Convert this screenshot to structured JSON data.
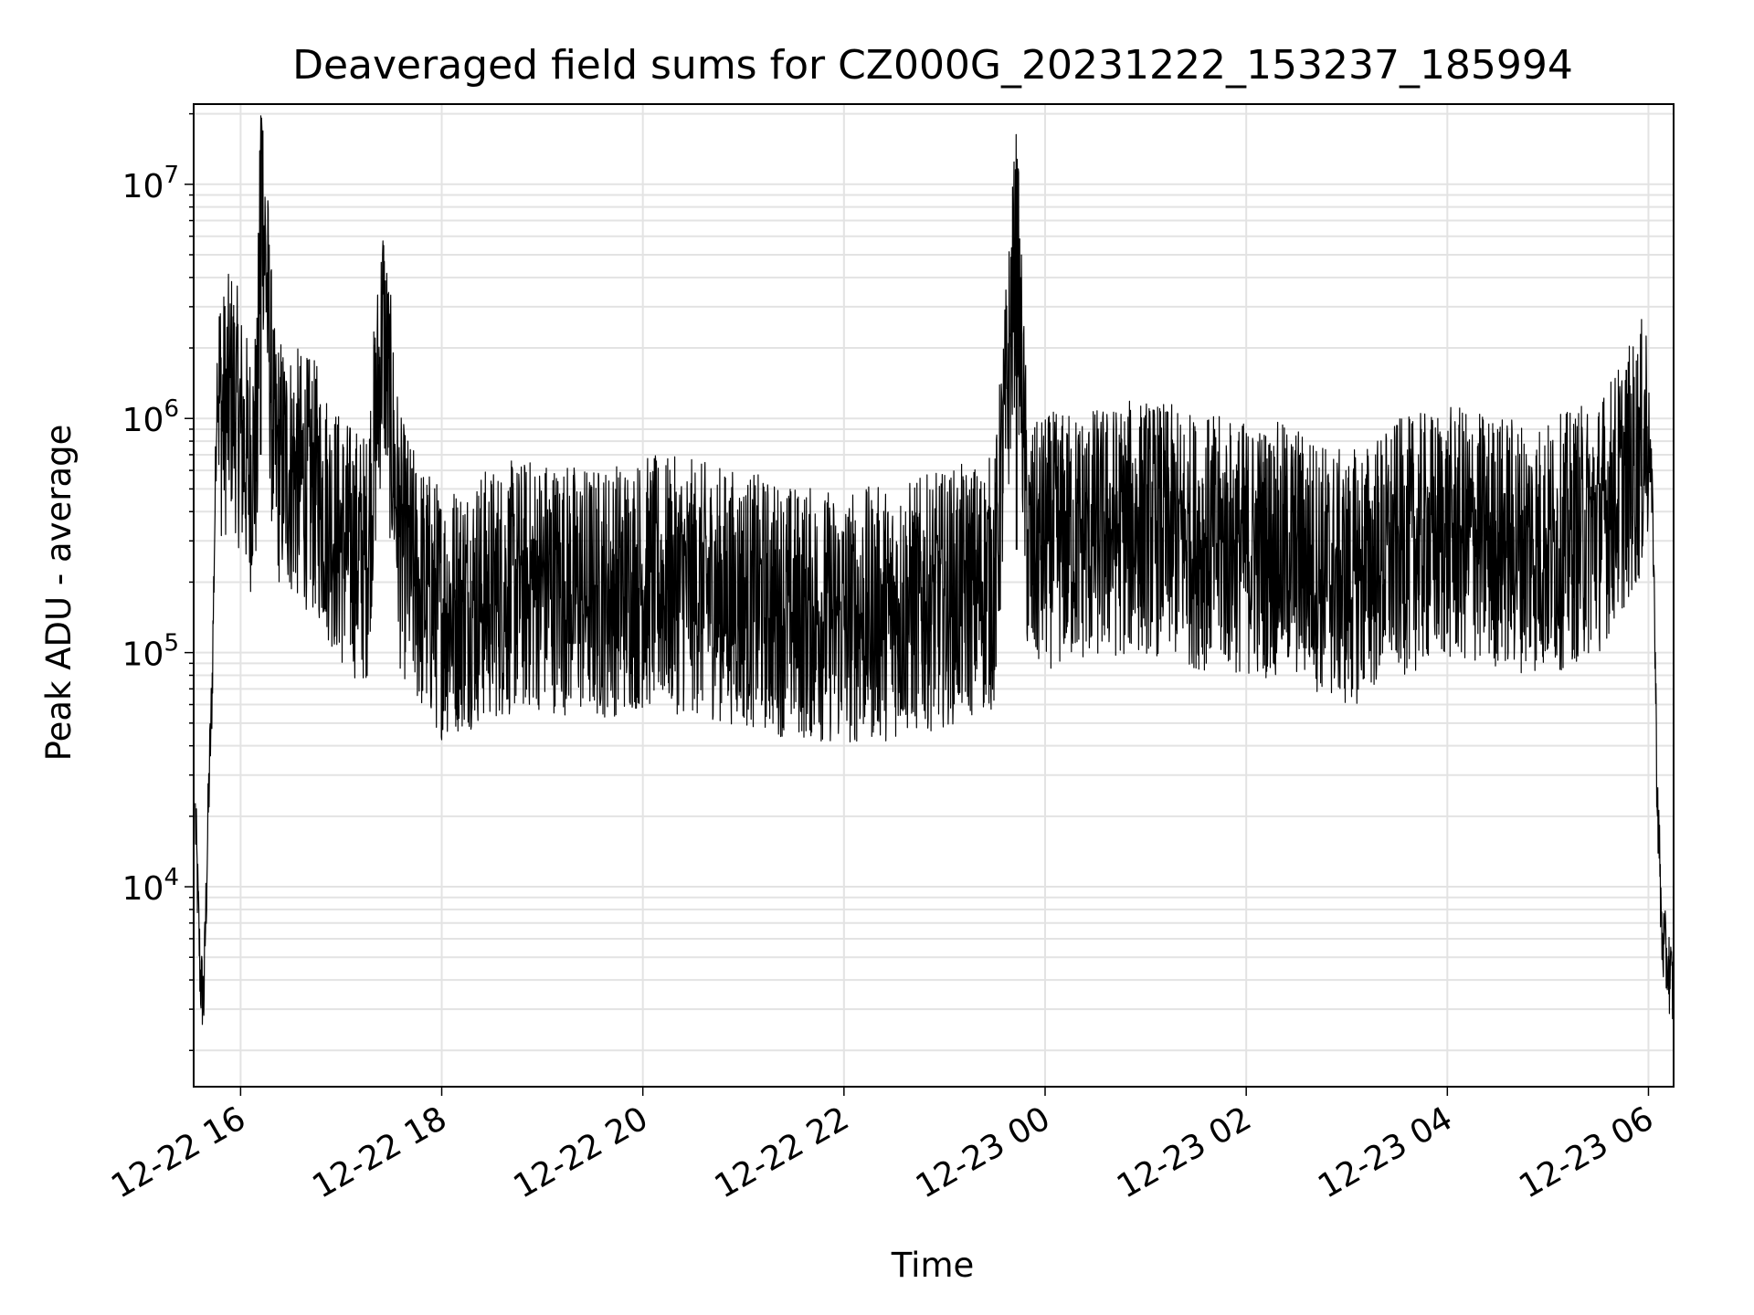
{
  "chart_data": {
    "type": "line",
    "title": "Deaveraged field sums for CZ000G_20231222_153237_185994",
    "xlabel": "Time",
    "ylabel": "Peak ADU - average",
    "y_scale": "log",
    "grid": true,
    "xlim": [
      "2023-12-22 15:32",
      "2023-12-23 06:15"
    ],
    "ylim": [
      1400,
      22000000
    ],
    "x_ticks": [
      "12-22 16",
      "12-22 18",
      "12-22 20",
      "12-22 22",
      "12-23 00",
      "12-23 02",
      "12-23 04",
      "12-23 06"
    ],
    "y_ticks": [
      {
        "base": "10",
        "exp": "4",
        "value": 10000
      },
      {
        "base": "10",
        "exp": "5",
        "value": 100000
      },
      {
        "base": "10",
        "exp": "6",
        "value": 1000000
      },
      {
        "base": "10",
        "exp": "7",
        "value": 10000000
      }
    ],
    "series": [
      {
        "color": "#000000",
        "x": [
          "2023-12-22 15:33",
          "2023-12-22 15:36",
          "2023-12-22 15:38",
          "2023-12-22 15:41",
          "2023-12-22 15:43",
          "2023-12-22 15:46",
          "2023-12-22 15:49",
          "2023-12-22 15:55",
          "2023-12-22 16:00",
          "2023-12-22 16:05",
          "2023-12-22 16:10",
          "2023-12-22 16:12",
          "2023-12-22 16:20",
          "2023-12-22 16:30",
          "2023-12-22 16:45",
          "2023-12-22 17:00",
          "2023-12-22 17:15",
          "2023-12-22 17:25",
          "2023-12-22 17:35",
          "2023-12-22 17:45",
          "2023-12-22 18:00",
          "2023-12-22 18:30",
          "2023-12-22 19:00",
          "2023-12-22 19:30",
          "2023-12-22 20:00",
          "2023-12-22 20:30",
          "2023-12-22 21:00",
          "2023-12-22 21:30",
          "2023-12-22 22:00",
          "2023-12-22 22:30",
          "2023-12-22 23:00",
          "2023-12-22 23:30",
          "2023-12-22 23:43",
          "2023-12-22 23:50",
          "2023-12-23 00:00",
          "2023-12-23 00:30",
          "2023-12-23 01:00",
          "2023-12-23 01:30",
          "2023-12-23 02:00",
          "2023-12-23 02:30",
          "2023-12-23 03:00",
          "2023-12-23 03:30",
          "2023-12-23 04:00",
          "2023-12-23 04:30",
          "2023-12-23 05:00",
          "2023-12-23 05:30",
          "2023-12-23 05:55",
          "2023-12-23 06:00",
          "2023-12-23 06:03",
          "2023-12-23 06:05",
          "2023-12-23 06:08",
          "2023-12-23 06:12",
          "2023-12-23 06:15"
        ],
        "y": [
          20000,
          4000,
          3300,
          25000,
          70000,
          1500000,
          1000000,
          1300000,
          900000,
          600000,
          800000,
          14000000,
          700000,
          600000,
          500000,
          300000,
          250000,
          2500000,
          300000,
          200000,
          150000,
          180000,
          200000,
          180000,
          200000,
          190000,
          170000,
          150000,
          140000,
          150000,
          170000,
          200000,
          5500000,
          250000,
          300000,
          320000,
          350000,
          300000,
          280000,
          270000,
          200000,
          280000,
          320000,
          300000,
          280000,
          350000,
          700000,
          1000000,
          300000,
          30000,
          6000,
          4500,
          3500
        ]
      }
    ]
  }
}
